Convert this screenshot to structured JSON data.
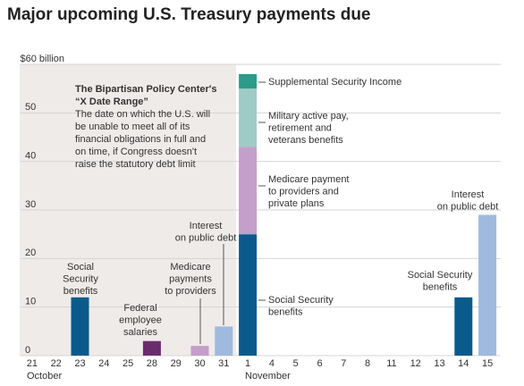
{
  "chart_data": {
    "type": "bar",
    "stacked": true,
    "title": "Major upcoming U.S. Treasury payments due",
    "categories": [
      "21",
      "22",
      "23",
      "24",
      "25",
      "28",
      "29",
      "30",
      "31",
      "1",
      "4",
      "5",
      "6",
      "7",
      "8",
      "11",
      "12",
      "13",
      "14",
      "15"
    ],
    "months": [
      "October",
      "November"
    ],
    "series": [
      {
        "color": "#0b5a8c",
        "values": [
          null,
          null,
          12,
          null,
          null,
          null,
          null,
          null,
          null,
          25,
          null,
          null,
          null,
          null,
          null,
          null,
          null,
          null,
          12,
          null
        ]
      },
      {
        "color": "#6b2c6e",
        "values": [
          null,
          null,
          null,
          null,
          null,
          3,
          null,
          null,
          null,
          null,
          null,
          null,
          null,
          null,
          null,
          null,
          null,
          null,
          null,
          null
        ]
      },
      {
        "color": "#c39fc9",
        "values": [
          null,
          null,
          null,
          null,
          null,
          null,
          null,
          2,
          null,
          18,
          null,
          null,
          null,
          null,
          null,
          null,
          null,
          null,
          null,
          null
        ]
      },
      {
        "color": "#a0badf",
        "values": [
          null,
          null,
          null,
          null,
          null,
          null,
          null,
          null,
          6,
          null,
          null,
          null,
          null,
          null,
          null,
          null,
          null,
          null,
          null,
          29
        ]
      },
      {
        "color": "#9fcbc6",
        "values": [
          null,
          null,
          null,
          null,
          null,
          null,
          null,
          null,
          null,
          12,
          null,
          null,
          null,
          null,
          null,
          null,
          null,
          null,
          null,
          null
        ]
      },
      {
        "color": "#2a9c89",
        "values": [
          null,
          null,
          null,
          null,
          null,
          null,
          null,
          null,
          null,
          3,
          null,
          null,
          null,
          null,
          null,
          null,
          null,
          null,
          null,
          null
        ]
      }
    ],
    "ylim": [
      0,
      60
    ],
    "yticks": [
      0,
      10,
      20,
      30,
      40,
      50,
      {
        "value": 60,
        "label": "$60 billion"
      }
    ],
    "grid": true,
    "shaded_region": {
      "title": [
        "The Bipartisan Policy Center's",
        "“X Date Range”"
      ],
      "text": [
        "The date on which the U.S. will",
        "be unable to meet all of its",
        "financial obligations in full and",
        "on time, if Congress doesn't",
        "raise the statutory debt limit"
      ]
    },
    "annotations": [
      [
        "Social",
        "Security",
        "benefits"
      ],
      [
        "Federal",
        "employee",
        "salaries"
      ],
      [
        "Medicare",
        "payments",
        "to providers"
      ],
      [
        "Interest",
        "on public debt"
      ],
      [
        "Supplemental Security Income"
      ],
      [
        "Military active pay,",
        "retirement and",
        "veterans benefits"
      ],
      [
        "Medicare payment",
        "to providers and",
        "private plans"
      ],
      [
        "Social Security",
        "benefits"
      ],
      [
        "Social Security",
        "benefits"
      ],
      [
        "Interest",
        "on public debt"
      ]
    ]
  }
}
